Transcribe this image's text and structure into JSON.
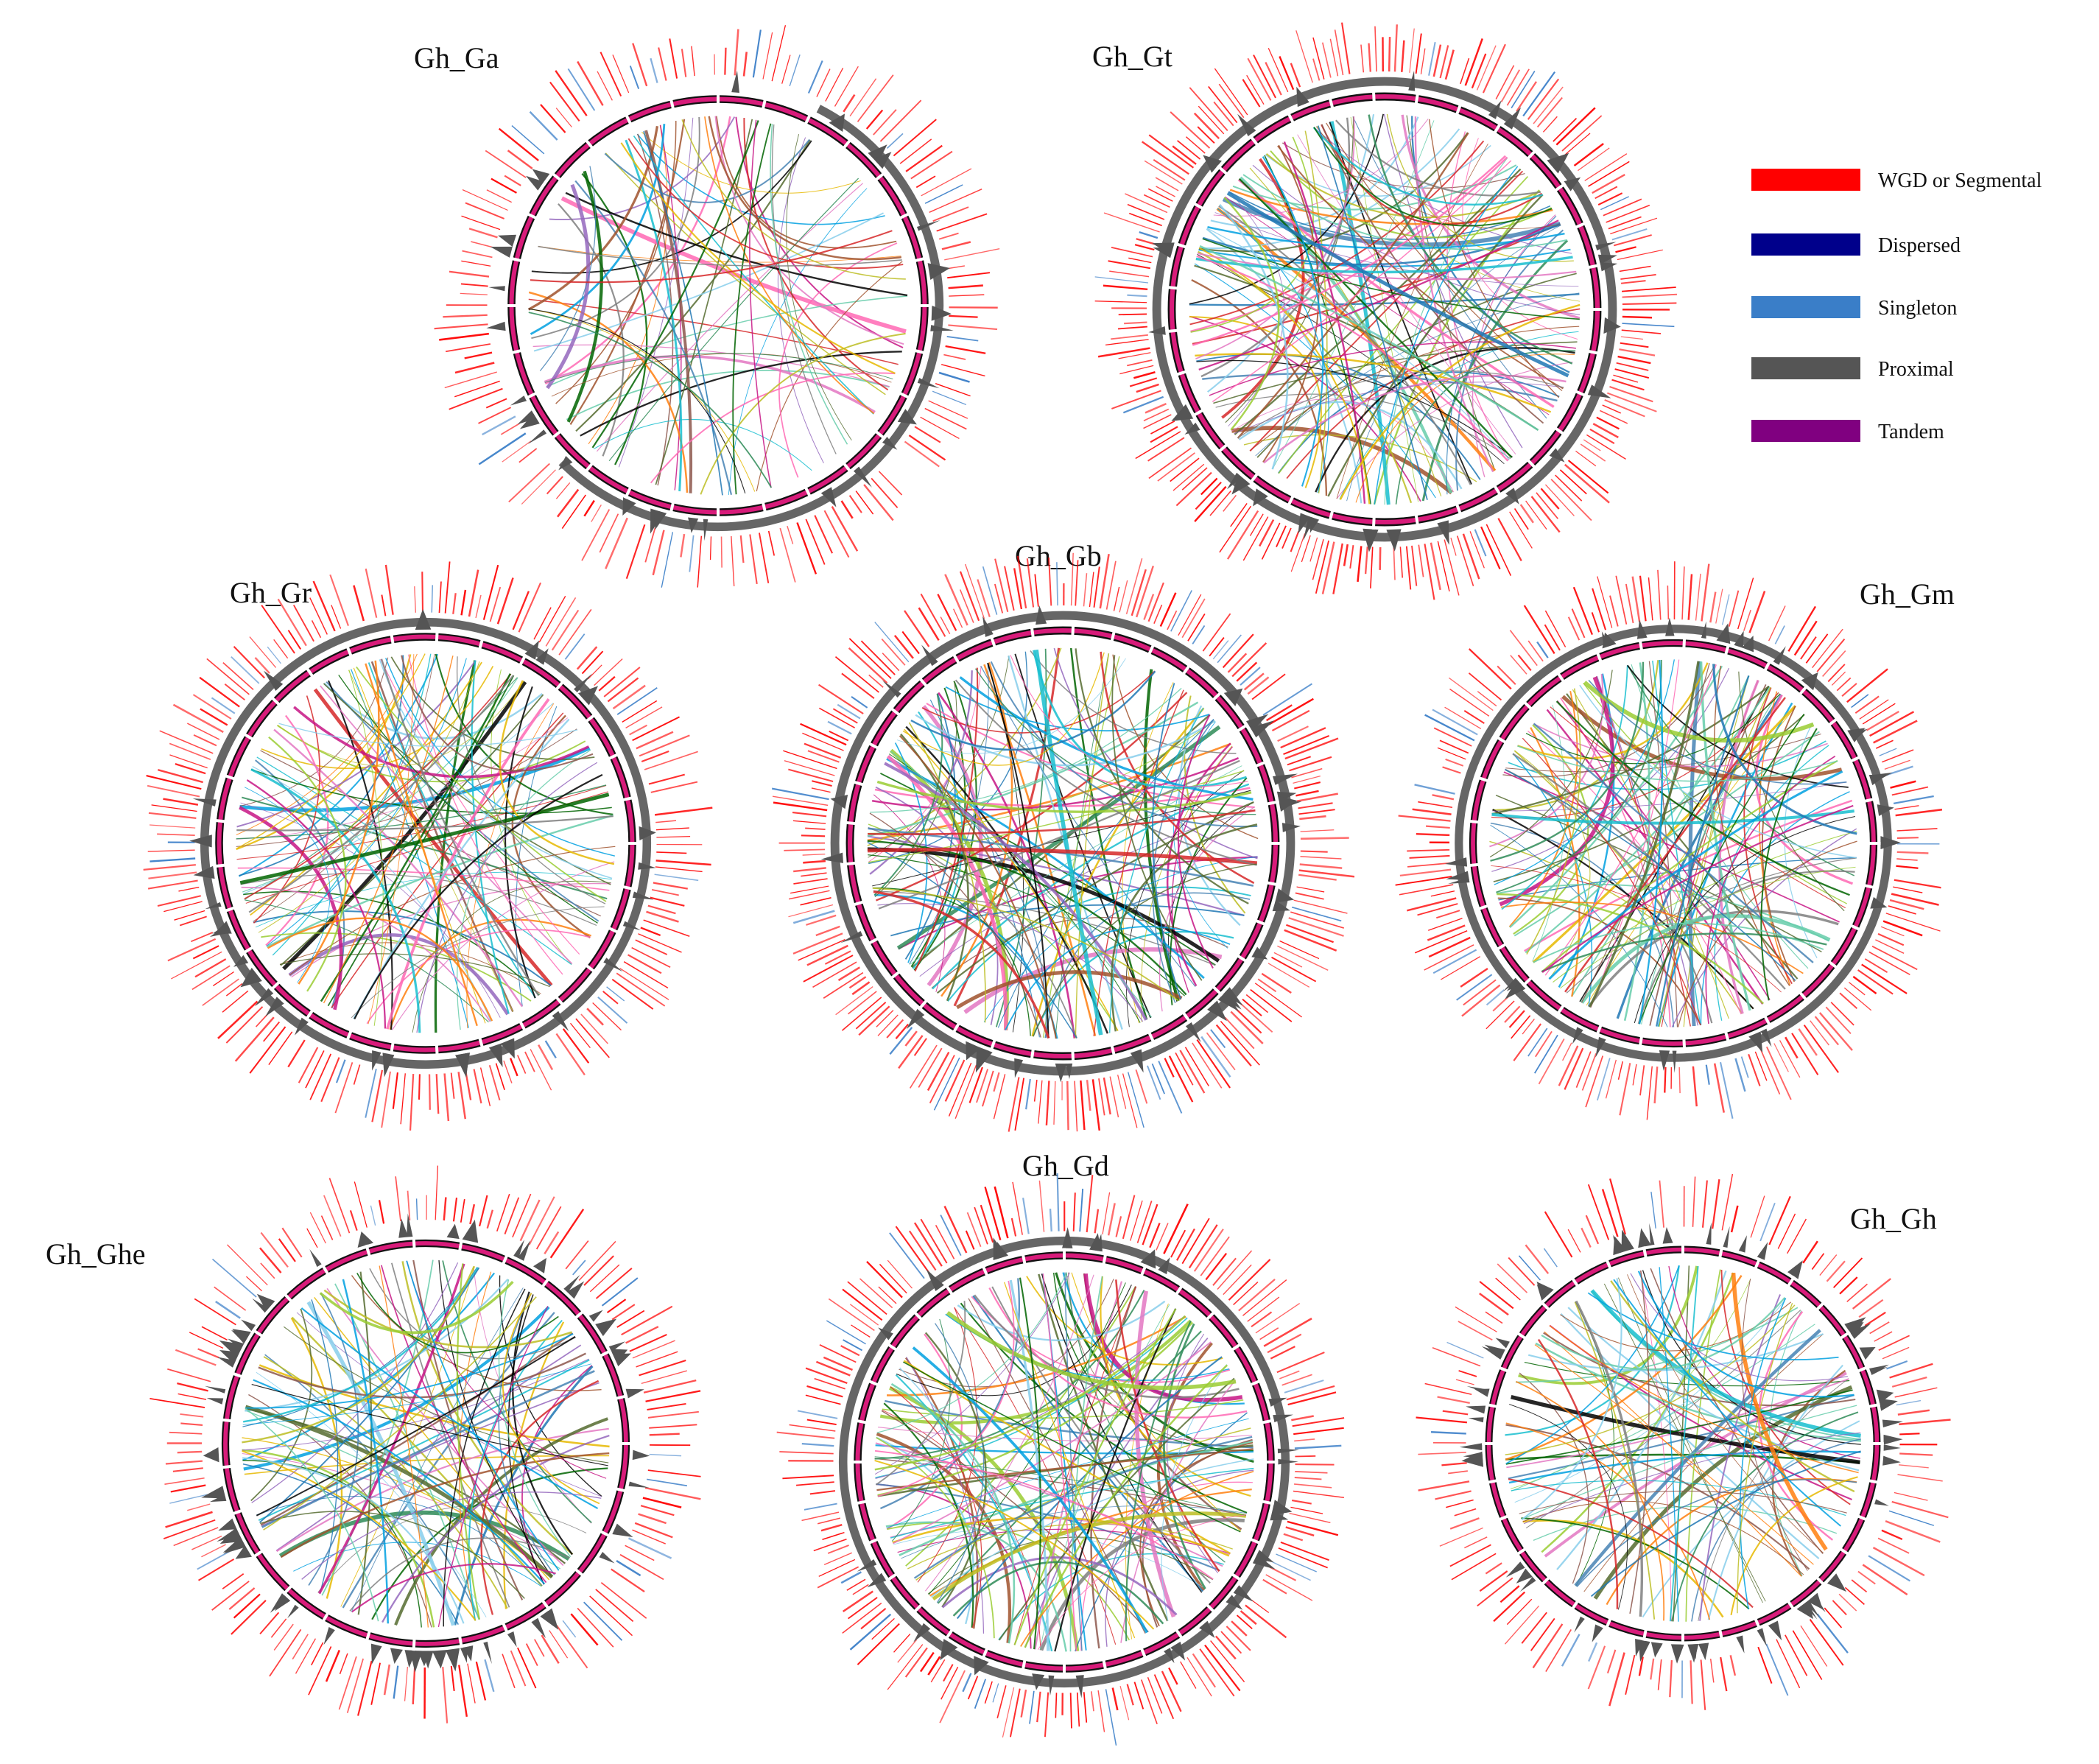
{
  "figure": {
    "description_role": "Circos synteny plots of Gossypium hirsutum versus other cotton genomes",
    "legend": {
      "items": [
        {
          "label": "WGD or Segmental",
          "color": "#ff0000"
        },
        {
          "label": "Dispersed",
          "color": "#00008b"
        },
        {
          "label": "Singleton",
          "color": "#3a7ec8"
        },
        {
          "label": "Proximal",
          "color": "#555555"
        },
        {
          "label": "Tandem",
          "color": "#800080"
        }
      ]
    },
    "panels": [
      {
        "id": "gh_ga",
        "title": "Gh_Ga",
        "links": 70,
        "outer_labels": 150,
        "singleton_share": 0.12,
        "proximal_band": "partial"
      },
      {
        "id": "gh_gt",
        "title": "Gh_Gt",
        "links": 130,
        "outer_labels": 230,
        "singleton_share": 0.08,
        "proximal_band": "full"
      },
      {
        "id": "gh_gr",
        "title": "Gh_Gr",
        "links": 110,
        "outer_labels": 190,
        "singleton_share": 0.1,
        "proximal_band": "full"
      },
      {
        "id": "gh_gb",
        "title": "Gh_Gb",
        "links": 130,
        "outer_labels": 240,
        "singleton_share": 0.08,
        "proximal_band": "full"
      },
      {
        "id": "gh_gm",
        "title": "Gh_Gm",
        "links": 120,
        "outer_labels": 200,
        "singleton_share": 0.1,
        "proximal_band": "full"
      },
      {
        "id": "gh_ghe",
        "title": "Gh_Ghe",
        "links": 100,
        "outer_labels": 160,
        "singleton_share": 0.12,
        "proximal_band": "spikes"
      },
      {
        "id": "gh_gd",
        "title": "Gh_Gd",
        "links": 130,
        "outer_labels": 200,
        "singleton_share": 0.12,
        "proximal_band": "full"
      },
      {
        "id": "gh_gh",
        "title": "Gh_Gh",
        "links": 90,
        "outer_labels": 140,
        "singleton_share": 0.12,
        "proximal_band": "spikes"
      }
    ],
    "link_palette": [
      "#2e8b57",
      "#1f77b4",
      "#ff7f0e",
      "#d62728",
      "#9467bd",
      "#8c564b",
      "#e377c2",
      "#7f7f7f",
      "#bcbd22",
      "#17becf",
      "#000000",
      "#006400",
      "#ff69b4",
      "#9acd32",
      "#4682b4",
      "#66cdaa",
      "#a0522d",
      "#00a0e0",
      "#c71585",
      "#556b2f",
      "#87ceeb",
      "#e6b800"
    ]
  }
}
